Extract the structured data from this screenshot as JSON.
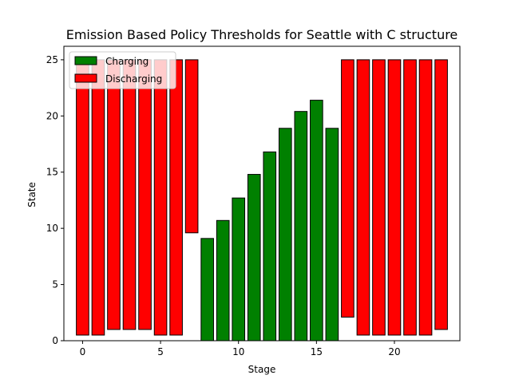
{
  "chart_data": {
    "type": "bar",
    "title": "Emission Based Policy Thresholds for Seattle with C structure",
    "xlabel": "Stage",
    "ylabel": "State",
    "xlim": [
      -1.2,
      24.2
    ],
    "ylim": [
      0,
      26.2
    ],
    "xticks": [
      0,
      5,
      10,
      15,
      20
    ],
    "yticks": [
      0,
      5,
      10,
      15,
      20,
      25
    ],
    "grid": false,
    "legend_position": "top-left",
    "legend": [
      {
        "name": "Charging",
        "color": "#008000"
      },
      {
        "name": "Discharging",
        "color": "#ff0000"
      }
    ],
    "series": [
      {
        "name": "Charging",
        "color": "#008000",
        "bars": [
          {
            "x": 8,
            "bottom": 0,
            "top": 9.1
          },
          {
            "x": 9,
            "bottom": 0,
            "top": 10.7
          },
          {
            "x": 10,
            "bottom": 0,
            "top": 12.7
          },
          {
            "x": 11,
            "bottom": 0,
            "top": 14.8
          },
          {
            "x": 12,
            "bottom": 0,
            "top": 16.8
          },
          {
            "x": 13,
            "bottom": 0,
            "top": 18.9
          },
          {
            "x": 14,
            "bottom": 0,
            "top": 20.4
          },
          {
            "x": 15,
            "bottom": 0,
            "top": 21.4
          },
          {
            "x": 16,
            "bottom": 0,
            "top": 18.9
          }
        ]
      },
      {
        "name": "Discharging",
        "color": "#ff0000",
        "bars": [
          {
            "x": 0,
            "bottom": 0.5,
            "top": 25
          },
          {
            "x": 1,
            "bottom": 0.5,
            "top": 25
          },
          {
            "x": 2,
            "bottom": 1.0,
            "top": 25
          },
          {
            "x": 3,
            "bottom": 1.0,
            "top": 25
          },
          {
            "x": 4,
            "bottom": 1.0,
            "top": 25
          },
          {
            "x": 5,
            "bottom": 0.5,
            "top": 25
          },
          {
            "x": 6,
            "bottom": 0.5,
            "top": 25
          },
          {
            "x": 7,
            "bottom": 9.6,
            "top": 25
          },
          {
            "x": 17,
            "bottom": 2.1,
            "top": 25
          },
          {
            "x": 18,
            "bottom": 0.5,
            "top": 25
          },
          {
            "x": 19,
            "bottom": 0.5,
            "top": 25
          },
          {
            "x": 20,
            "bottom": 0.5,
            "top": 25
          },
          {
            "x": 21,
            "bottom": 0.5,
            "top": 25
          },
          {
            "x": 22,
            "bottom": 0.5,
            "top": 25
          },
          {
            "x": 23,
            "bottom": 1.0,
            "top": 25
          }
        ]
      }
    ]
  }
}
